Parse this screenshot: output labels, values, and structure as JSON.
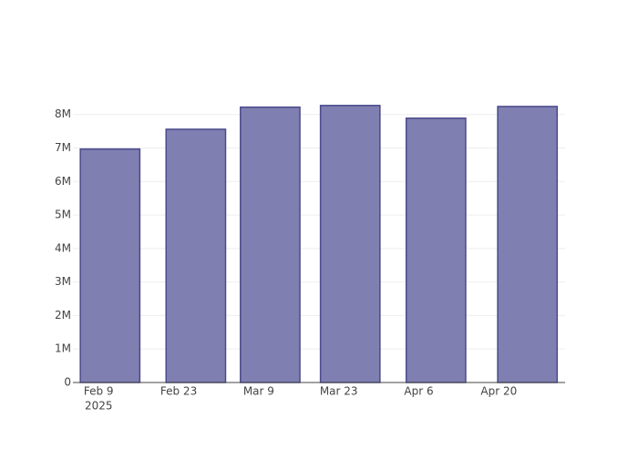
{
  "chart_data": {
    "type": "bar",
    "x": [
      "2025-02-11",
      "2025-02-26",
      "2025-03-11",
      "2025-03-25",
      "2025-04-09",
      "2025-04-25"
    ],
    "values": [
      6970000,
      7560000,
      8220000,
      8270000,
      7890000,
      8240000
    ],
    "color": "#7f7fb1",
    "edge_color": "#4a4a8c",
    "xlim": [
      "2025-02-04T12:00",
      "2025-05-01T14:00"
    ],
    "xticks": [
      {
        "value": "2025-02-09",
        "label": "Feb 9"
      },
      {
        "value": "2025-02-23",
        "label": "Feb 23"
      },
      {
        "value": "2025-03-09",
        "label": "Mar 9"
      },
      {
        "value": "2025-03-23",
        "label": "Mar 23"
      },
      {
        "value": "2025-04-06",
        "label": "Apr 6"
      },
      {
        "value": "2025-04-20",
        "label": "Apr 20"
      }
    ],
    "x_year": "2025",
    "ylim": [
      0,
      8700000
    ],
    "yticks": [
      0,
      {
        "value": 1000000,
        "label": "1M"
      },
      {
        "value": 2000000,
        "label": "2M"
      },
      {
        "value": 3000000,
        "label": "3M"
      },
      {
        "value": 4000000,
        "label": "4M"
      },
      {
        "value": 5000000,
        "label": "5M"
      },
      {
        "value": 6000000,
        "label": "6M"
      },
      {
        "value": 7000000,
        "label": "7M"
      },
      {
        "value": 8000000,
        "label": "8M"
      }
    ],
    "grid": true
  }
}
